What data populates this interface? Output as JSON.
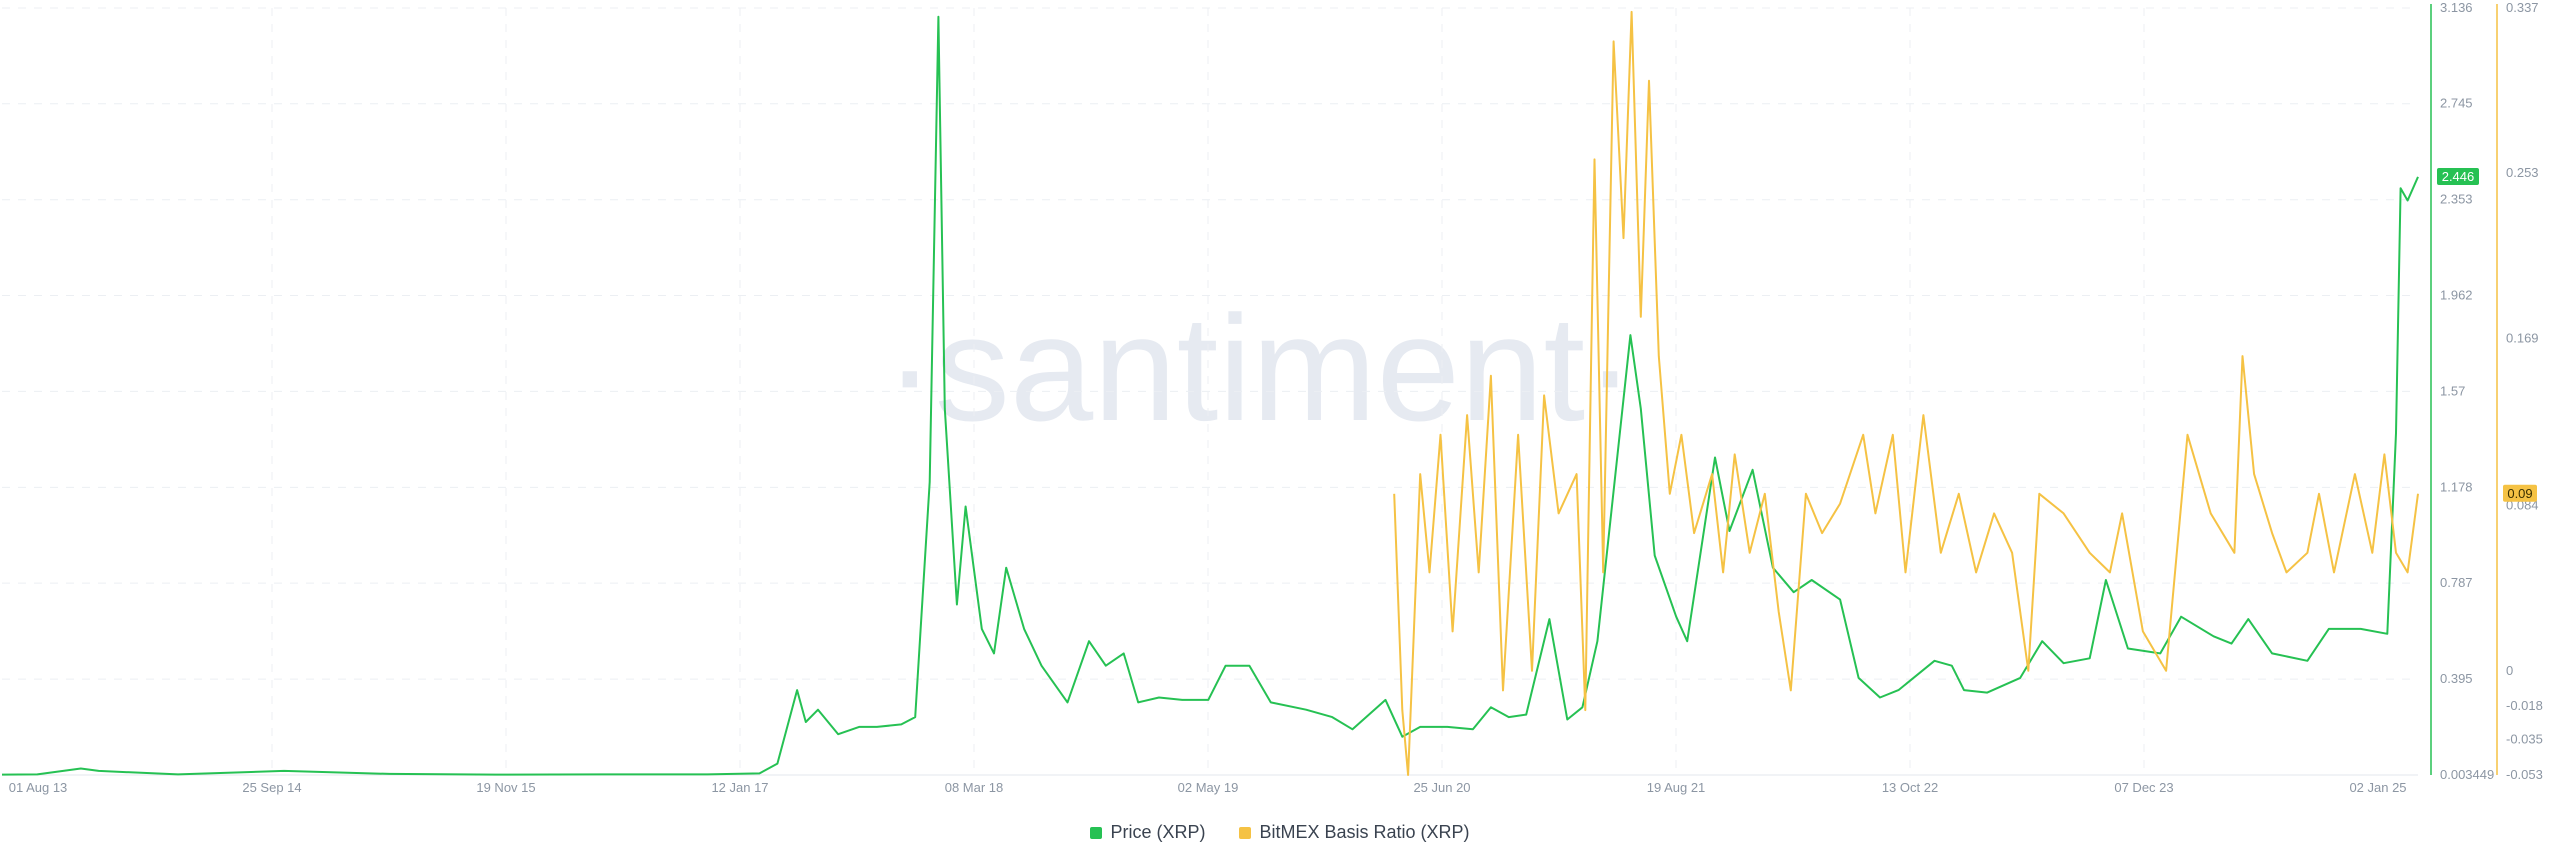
{
  "watermark": "·santiment·",
  "chart_data": {
    "type": "line",
    "title": "",
    "x_tick_labels": [
      "01 Aug 13",
      "25 Sep 14",
      "19 Nov 15",
      "12 Jan 17",
      "08 Mar 18",
      "02 May 19",
      "25 Jun 20",
      "19 Aug 21",
      "13 Oct 22",
      "07 Dec 23",
      "02 Jan 25"
    ],
    "x_range": [
      "2013-08-01",
      "2025-01-02"
    ],
    "left_axis": {
      "series": "Price (XRP)",
      "range": [
        0.003449,
        3.136
      ],
      "ticks": [
        "3.136",
        "2.745",
        "2.353",
        "1.962",
        "1.57",
        "1.178",
        "0.787",
        "0.395",
        "0.003449"
      ]
    },
    "right_axis": {
      "series": "BitMEX Basis Ratio (XRP)",
      "range": [
        -0.053,
        0.337
      ],
      "ticks": [
        "0.337",
        "0.253",
        "0.169",
        "0.084",
        "0",
        "-0.018",
        "-0.035",
        "-0.053"
      ]
    },
    "grid": true,
    "legend_position": "bottom-center",
    "series": [
      {
        "name": "Price (XRP)",
        "color": "#26c153",
        "axis": "left",
        "last_value": "2.446",
        "points": [
          [
            "2013-08-01",
            0.005
          ],
          [
            "2013-10-01",
            0.006
          ],
          [
            "2013-12-15",
            0.03
          ],
          [
            "2014-01-15",
            0.02
          ],
          [
            "2014-06-01",
            0.006
          ],
          [
            "2014-12-01",
            0.02
          ],
          [
            "2015-06-01",
            0.008
          ],
          [
            "2015-12-01",
            0.005
          ],
          [
            "2016-06-01",
            0.006
          ],
          [
            "2016-12-01",
            0.006
          ],
          [
            "2017-03-01",
            0.01
          ],
          [
            "2017-04-01",
            0.05
          ],
          [
            "2017-05-05",
            0.35
          ],
          [
            "2017-05-20",
            0.22
          ],
          [
            "2017-06-10",
            0.27
          ],
          [
            "2017-07-15",
            0.17
          ],
          [
            "2017-08-20",
            0.2
          ],
          [
            "2017-09-20",
            0.2
          ],
          [
            "2017-11-01",
            0.21
          ],
          [
            "2017-11-25",
            0.24
          ],
          [
            "2017-12-20",
            1.2
          ],
          [
            "2018-01-04",
            3.1
          ],
          [
            "2018-01-15",
            1.5
          ],
          [
            "2018-02-05",
            0.7
          ],
          [
            "2018-02-20",
            1.1
          ],
          [
            "2018-03-20",
            0.6
          ],
          [
            "2018-04-10",
            0.5
          ],
          [
            "2018-05-01",
            0.85
          ],
          [
            "2018-06-01",
            0.6
          ],
          [
            "2018-07-01",
            0.45
          ],
          [
            "2018-08-15",
            0.3
          ],
          [
            "2018-09-21",
            0.55
          ],
          [
            "2018-10-20",
            0.45
          ],
          [
            "2018-11-20",
            0.5
          ],
          [
            "2018-12-15",
            0.3
          ],
          [
            "2019-01-20",
            0.32
          ],
          [
            "2019-03-01",
            0.31
          ],
          [
            "2019-04-15",
            0.31
          ],
          [
            "2019-05-15",
            0.45
          ],
          [
            "2019-06-25",
            0.45
          ],
          [
            "2019-08-01",
            0.3
          ],
          [
            "2019-10-01",
            0.27
          ],
          [
            "2019-11-15",
            0.24
          ],
          [
            "2019-12-20",
            0.19
          ],
          [
            "2020-02-15",
            0.31
          ],
          [
            "2020-03-15",
            0.16
          ],
          [
            "2020-04-15",
            0.2
          ],
          [
            "2020-06-01",
            0.2
          ],
          [
            "2020-07-15",
            0.19
          ],
          [
            "2020-08-15",
            0.28
          ],
          [
            "2020-09-15",
            0.24
          ],
          [
            "2020-10-15",
            0.25
          ],
          [
            "2020-11-24",
            0.64
          ],
          [
            "2020-12-25",
            0.23
          ],
          [
            "2021-01-20",
            0.28
          ],
          [
            "2021-02-15",
            0.55
          ],
          [
            "2021-04-13",
            1.8
          ],
          [
            "2021-05-01",
            1.5
          ],
          [
            "2021-05-25",
            0.9
          ],
          [
            "2021-07-01",
            0.65
          ],
          [
            "2021-07-20",
            0.55
          ],
          [
            "2021-09-06",
            1.3
          ],
          [
            "2021-10-01",
            1.0
          ],
          [
            "2021-11-10",
            1.25
          ],
          [
            "2021-12-15",
            0.85
          ],
          [
            "2022-01-20",
            0.75
          ],
          [
            "2022-02-20",
            0.8
          ],
          [
            "2022-04-10",
            0.72
          ],
          [
            "2022-05-12",
            0.4
          ],
          [
            "2022-06-18",
            0.32
          ],
          [
            "2022-07-20",
            0.35
          ],
          [
            "2022-09-20",
            0.47
          ],
          [
            "2022-10-20",
            0.45
          ],
          [
            "2022-11-10",
            0.35
          ],
          [
            "2022-12-20",
            0.34
          ],
          [
            "2023-02-15",
            0.4
          ],
          [
            "2023-03-25",
            0.55
          ],
          [
            "2023-05-01",
            0.46
          ],
          [
            "2023-06-15",
            0.48
          ],
          [
            "2023-07-13",
            0.8
          ],
          [
            "2023-08-20",
            0.52
          ],
          [
            "2023-10-15",
            0.5
          ],
          [
            "2023-11-20",
            0.65
          ],
          [
            "2024-01-15",
            0.57
          ],
          [
            "2024-02-15",
            0.54
          ],
          [
            "2024-03-15",
            0.64
          ],
          [
            "2024-04-25",
            0.5
          ],
          [
            "2024-06-25",
            0.47
          ],
          [
            "2024-08-01",
            0.6
          ],
          [
            "2024-09-25",
            0.6
          ],
          [
            "2024-11-10",
            0.58
          ],
          [
            "2024-11-25",
            1.4
          ],
          [
            "2024-12-03",
            2.4
          ],
          [
            "2024-12-15",
            2.35
          ],
          [
            "2025-01-02",
            2.446
          ]
        ]
      },
      {
        "name": "BitMEX Basis Ratio (XRP)",
        "color": "#f5c244",
        "axis": "right",
        "last_value": "0.09",
        "points": [
          [
            "2020-03-01",
            0.09
          ],
          [
            "2020-03-15",
            -0.02
          ],
          [
            "2020-03-25",
            -0.053
          ],
          [
            "2020-04-15",
            0.1
          ],
          [
            "2020-05-01",
            0.05
          ],
          [
            "2020-05-20",
            0.12
          ],
          [
            "2020-06-10",
            0.02
          ],
          [
            "2020-07-05",
            0.13
          ],
          [
            "2020-07-25",
            0.05
          ],
          [
            "2020-08-15",
            0.15
          ],
          [
            "2020-09-05",
            -0.01
          ],
          [
            "2020-10-01",
            0.12
          ],
          [
            "2020-10-25",
            0.0
          ],
          [
            "2020-11-15",
            0.14
          ],
          [
            "2020-12-10",
            0.08
          ],
          [
            "2021-01-10",
            0.1
          ],
          [
            "2021-01-25",
            -0.02
          ],
          [
            "2021-02-10",
            0.26
          ],
          [
            "2021-02-25",
            0.05
          ],
          [
            "2021-03-15",
            0.32
          ],
          [
            "2021-04-01",
            0.22
          ],
          [
            "2021-04-15",
            0.335
          ],
          [
            "2021-05-01",
            0.18
          ],
          [
            "2021-05-15",
            0.3
          ],
          [
            "2021-06-01",
            0.16
          ],
          [
            "2021-06-20",
            0.09
          ],
          [
            "2021-07-10",
            0.12
          ],
          [
            "2021-08-01",
            0.07
          ],
          [
            "2021-09-01",
            0.1
          ],
          [
            "2021-09-20",
            0.05
          ],
          [
            "2021-10-10",
            0.11
          ],
          [
            "2021-11-05",
            0.06
          ],
          [
            "2021-12-01",
            0.09
          ],
          [
            "2021-12-25",
            0.03
          ],
          [
            "2022-01-15",
            -0.01
          ],
          [
            "2022-02-10",
            0.09
          ],
          [
            "2022-03-10",
            0.07
          ],
          [
            "2022-04-10",
            0.085
          ],
          [
            "2022-05-20",
            0.12
          ],
          [
            "2022-06-10",
            0.08
          ],
          [
            "2022-07-10",
            0.12
          ],
          [
            "2022-08-01",
            0.05
          ],
          [
            "2022-09-01",
            0.13
          ],
          [
            "2022-10-01",
            0.06
          ],
          [
            "2022-11-01",
            0.09
          ],
          [
            "2022-12-01",
            0.05
          ],
          [
            "2023-01-01",
            0.08
          ],
          [
            "2023-02-01",
            0.06
          ],
          [
            "2023-03-01",
            0.0
          ],
          [
            "2023-03-20",
            0.09
          ],
          [
            "2023-05-01",
            0.08
          ],
          [
            "2023-06-15",
            0.06
          ],
          [
            "2023-07-20",
            0.05
          ],
          [
            "2023-08-10",
            0.08
          ],
          [
            "2023-09-15",
            0.02
          ],
          [
            "2023-10-25",
            0.0
          ],
          [
            "2023-12-01",
            0.12
          ],
          [
            "2024-01-10",
            0.08
          ],
          [
            "2024-02-20",
            0.06
          ],
          [
            "2024-03-05",
            0.16
          ],
          [
            "2024-03-25",
            0.1
          ],
          [
            "2024-04-25",
            0.07
          ],
          [
            "2024-05-20",
            0.05
          ],
          [
            "2024-06-25",
            0.06
          ],
          [
            "2024-07-15",
            0.09
          ],
          [
            "2024-08-10",
            0.05
          ],
          [
            "2024-09-15",
            0.1
          ],
          [
            "2024-10-15",
            0.06
          ],
          [
            "2024-11-05",
            0.11
          ],
          [
            "2024-11-25",
            0.06
          ],
          [
            "2024-12-15",
            0.05
          ],
          [
            "2025-01-02",
            0.09
          ]
        ]
      }
    ]
  },
  "legend": {
    "price_label": "Price (XRP)",
    "basis_label": "BitMEX Basis Ratio (XRP)",
    "price_color": "#26c153",
    "basis_color": "#f5c244"
  }
}
